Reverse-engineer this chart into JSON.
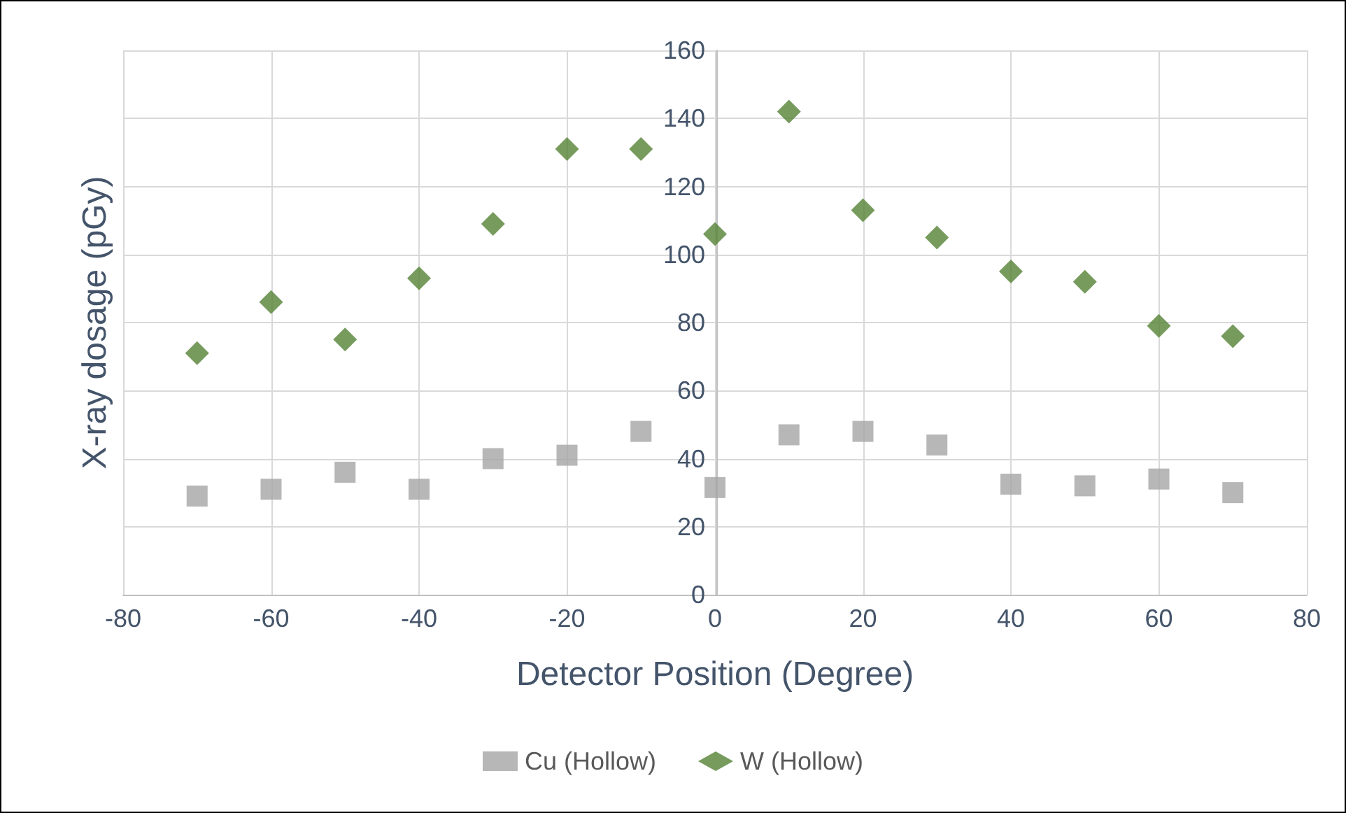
{
  "chart_data": {
    "type": "scatter",
    "xlabel": "Detector Position (Degree)",
    "ylabel": "X-ray dosage (pGy)",
    "x": [
      -70,
      -60,
      -50,
      -40,
      -30,
      -20,
      -10,
      0,
      10,
      20,
      30,
      40,
      50,
      60,
      70
    ],
    "series": [
      {
        "name": "Cu (Hollow)",
        "color": "#a5a5a5",
        "marker": "square",
        "values": [
          29,
          31,
          36,
          31,
          40,
          41,
          48,
          31.5,
          47,
          48,
          44,
          32.5,
          32,
          34,
          30
        ]
      },
      {
        "name": "W (Hollow)",
        "color": "#548235",
        "marker": "diamond",
        "values": [
          71,
          86,
          75,
          93,
          109,
          131,
          131,
          106,
          142,
          113,
          105,
          95,
          92,
          79,
          76
        ]
      }
    ],
    "xlim": [
      -80,
      80
    ],
    "xticks": [
      -80,
      -60,
      -40,
      -20,
      0,
      20,
      40,
      60,
      80
    ],
    "ylim": [
      0,
      160
    ],
    "yticks": [
      0,
      20,
      40,
      60,
      80,
      100,
      120,
      140,
      160
    ],
    "grid": true,
    "legend": "bottom"
  }
}
